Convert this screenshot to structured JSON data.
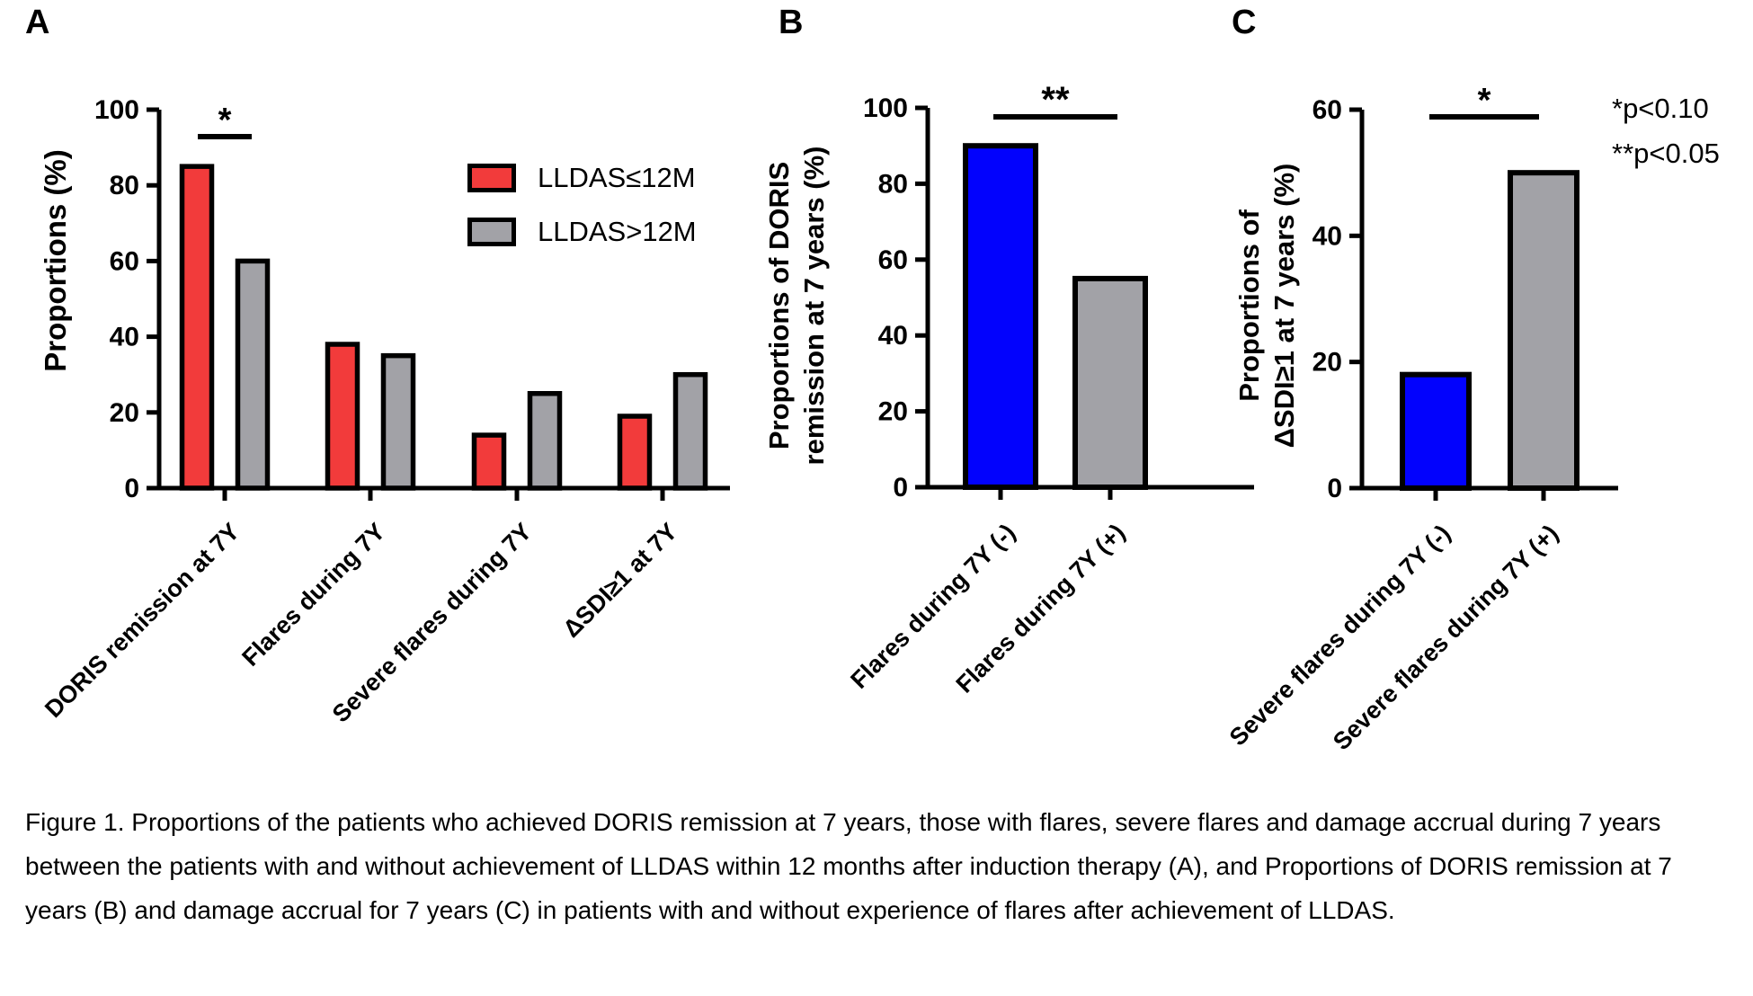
{
  "figure": {
    "panel_labels": [
      "A",
      "B",
      "C"
    ],
    "p_notes": [
      "*p<0.10",
      "**p<0.05"
    ],
    "caption": "Figure 1. Proportions of the patients who achieved DORIS remission at 7 years, those with flares, severe flares and damage accrual during 7 years between the patients with and without achievement of LLDAS within 12 months after induction therapy (A), and Proportions of DORIS remission at 7 years (B) and damage accrual for 7 years (C) in patients with and without experience of flares after achievement of LLDAS."
  },
  "legend": {
    "position": "inside-top-right-of-panel-A",
    "items": [
      {
        "label": "LLDAS≤12M",
        "color": "#F23B3B"
      },
      {
        "label": "LLDAS>12M",
        "color": "#A2A2A7"
      }
    ]
  },
  "chart_data": [
    {
      "type": "bar",
      "panel": "A",
      "ylabel_lines": [
        "Proportions (%)"
      ],
      "ylim": [
        0,
        100
      ],
      "yticks": [
        0,
        20,
        40,
        60,
        80,
        100
      ],
      "grid": false,
      "categories": [
        "DORIS remission at 7Y",
        "Flares during 7Y",
        "Severe flares during 7Y",
        "ΔSDI≥1 at 7Y"
      ],
      "series": [
        {
          "name": "LLDAS≤12M",
          "color": "#F23B3B",
          "values": [
            85,
            38,
            14,
            19
          ]
        },
        {
          "name": "LLDAS>12M",
          "color": "#A2A2A7",
          "values": [
            60,
            35,
            25,
            30
          ]
        }
      ],
      "significance": {
        "symbol": "*",
        "over": "first category pair"
      }
    },
    {
      "type": "bar",
      "panel": "B",
      "ylabel_lines": [
        "Proportions of DORIS",
        "remission at 7 years (%)"
      ],
      "ylim": [
        0,
        100
      ],
      "yticks": [
        0,
        20,
        40,
        60,
        80,
        100
      ],
      "grid": false,
      "categories": [
        "Flares during 7Y (-)",
        "Flares during 7Y (+)"
      ],
      "series": [
        {
          "name": "",
          "colors": [
            "#0202FD",
            "#A2A2A7"
          ],
          "values": [
            90,
            55
          ]
        }
      ],
      "significance": {
        "symbol": "**",
        "over": "both bars"
      }
    },
    {
      "type": "bar",
      "panel": "C",
      "ylabel_lines": [
        "Proportions of",
        "ΔSDI≥1 at 7 years (%)"
      ],
      "ylim": [
        0,
        60
      ],
      "yticks": [
        0,
        20,
        40,
        60
      ],
      "grid": false,
      "categories": [
        "Severe flares during 7Y (-)",
        "Severe flares during 7Y (+)"
      ],
      "series": [
        {
          "name": "",
          "colors": [
            "#0202FD",
            "#A2A2A7"
          ],
          "values": [
            18,
            50
          ]
        }
      ],
      "significance": {
        "symbol": "*",
        "over": "both bars"
      }
    }
  ]
}
